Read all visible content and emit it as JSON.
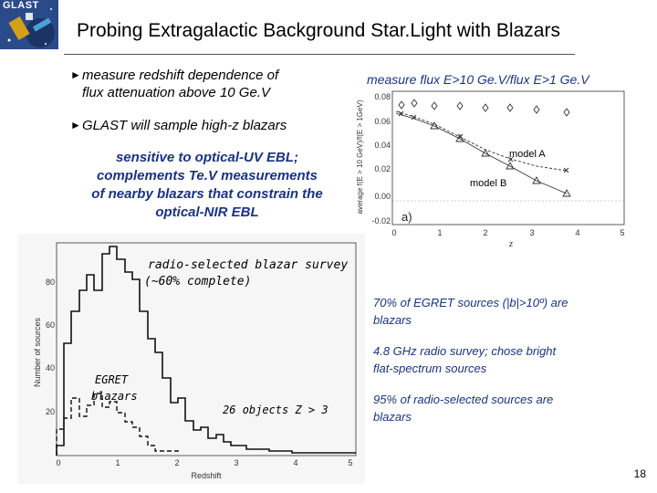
{
  "logo_text": "GLAST",
  "title": "Probing Extragalactic Background Star.Light with Blazars",
  "bullets": [
    {
      "line1": "measure redshift dependence of",
      "line2": "flux attenuation above 10 Ge.V"
    },
    {
      "line1": "GLAST will sample high-z blazars"
    }
  ],
  "ebl_note": {
    "line1": "sensitive to optical-UV EBL;",
    "line2": "complements Te.V measurements",
    "line3": "of nearby blazars that constrain the",
    "line4": "optical-NIR EBL"
  },
  "flux_figure": {
    "caption": "measure flux E>10 Ge.V/flux E>1 Ge.V",
    "ylabel": "average f(E > 10 GeV)/f(E > 1GeV)",
    "xlabel": "z",
    "panel_label": "a)",
    "model_a_label": "model A",
    "model_b_label": "model B",
    "yticks": [
      "0.08",
      "0.06",
      "0.04",
      "0.02",
      "0.00",
      "-0.02"
    ],
    "xticks": [
      "0",
      "1",
      "2",
      "3",
      "4",
      "5"
    ]
  },
  "hist_figure": {
    "ylabel": "Number of sources",
    "xlabel": "Redshift",
    "survey_label_line1": "radio-selected blazar survey",
    "survey_label_line2": "(~60% complete)",
    "egret_line1": "EGRET",
    "egret_line2": "blazars",
    "objects_note": "26 objects Z > 3",
    "yticks": [
      "80",
      "60",
      "40",
      "20"
    ],
    "xticks": [
      "0",
      "1",
      "2",
      "3",
      "4",
      "5"
    ]
  },
  "notes": [
    {
      "line1": "70% of EGRET sources (|b|>10º) are",
      "line2": "blazars"
    },
    {
      "line1": "4.8 GHz radio survey; chose bright",
      "line2": "flat-spectrum sources"
    },
    {
      "line1": "95% of radio-selected sources are",
      "line2": "blazars"
    }
  ],
  "page_number": "18"
}
